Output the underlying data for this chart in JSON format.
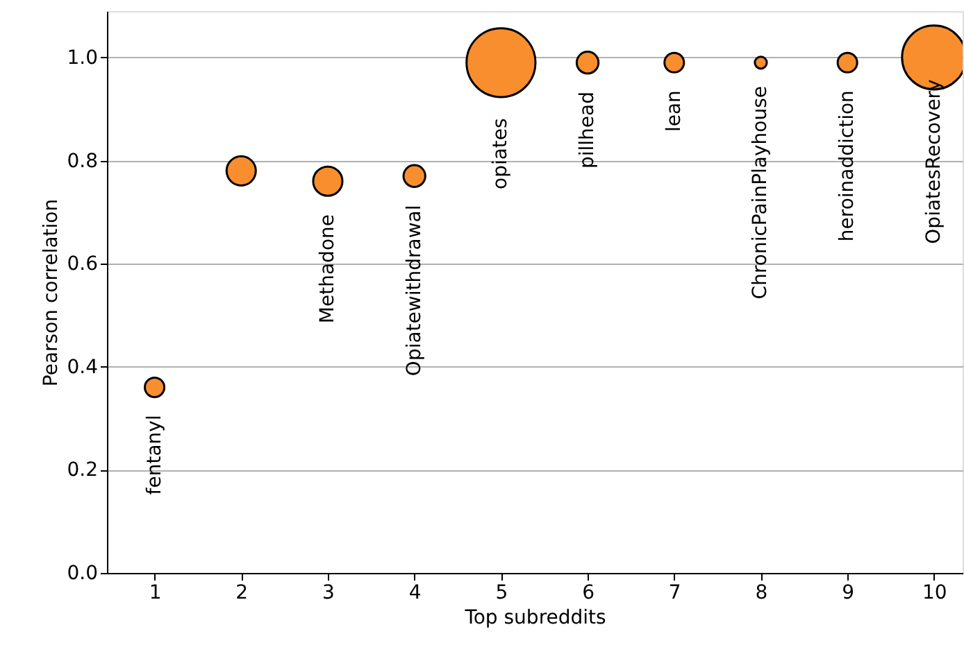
{
  "chart_data": {
    "type": "bubble",
    "xlabel": "Top subreddits",
    "ylabel": "Pearson correlation",
    "x": [
      1,
      2,
      3,
      4,
      5,
      6,
      7,
      8,
      9,
      10
    ],
    "series": [
      {
        "color": "#f98e2e",
        "values": [
          0.36,
          0.78,
          0.76,
          0.77,
          0.99,
          0.99,
          0.99,
          0.99,
          0.99,
          1.0
        ],
        "sizes": [
          0.08,
          0.18,
          0.18,
          0.1,
          1,
          0.1,
          0.08,
          0.03,
          0.08,
          0.86
        ]
      }
    ],
    "xlim": [
      0.45,
      10.33
    ],
    "xticks": [
      1,
      2,
      3,
      4,
      5,
      6,
      7,
      8,
      9,
      10
    ],
    "ylim": [
      0,
      1.09
    ],
    "yticks": [
      {
        "value": 0,
        "label": "0.0"
      },
      0.2,
      0.4,
      0.6,
      0.8,
      {
        "value": 1,
        "label": "1.0"
      }
    ],
    "grid": "y",
    "annotations": [
      {
        "text": "fentanyl",
        "x": 1,
        "y": 0.36
      },
      {
        "text": "Methadone",
        "x": 3,
        "y": 0.76
      },
      {
        "text": "Opiatewithdrawal",
        "x": 4,
        "y": 0.77
      },
      {
        "text": "opiates",
        "x": 5,
        "y": 0.99
      },
      {
        "text": "pillhead",
        "x": 6,
        "y": 0.99
      },
      {
        "text": "lean",
        "x": 7,
        "y": 0.99
      },
      {
        "text": "ChronicPainPlayhouse",
        "x": 8,
        "y": 0.99
      },
      {
        "text": "heroinaddiction",
        "x": 9,
        "y": 0.99
      },
      {
        "text": "OpiatesRecovery",
        "x": 10,
        "y": 0.99
      }
    ]
  }
}
